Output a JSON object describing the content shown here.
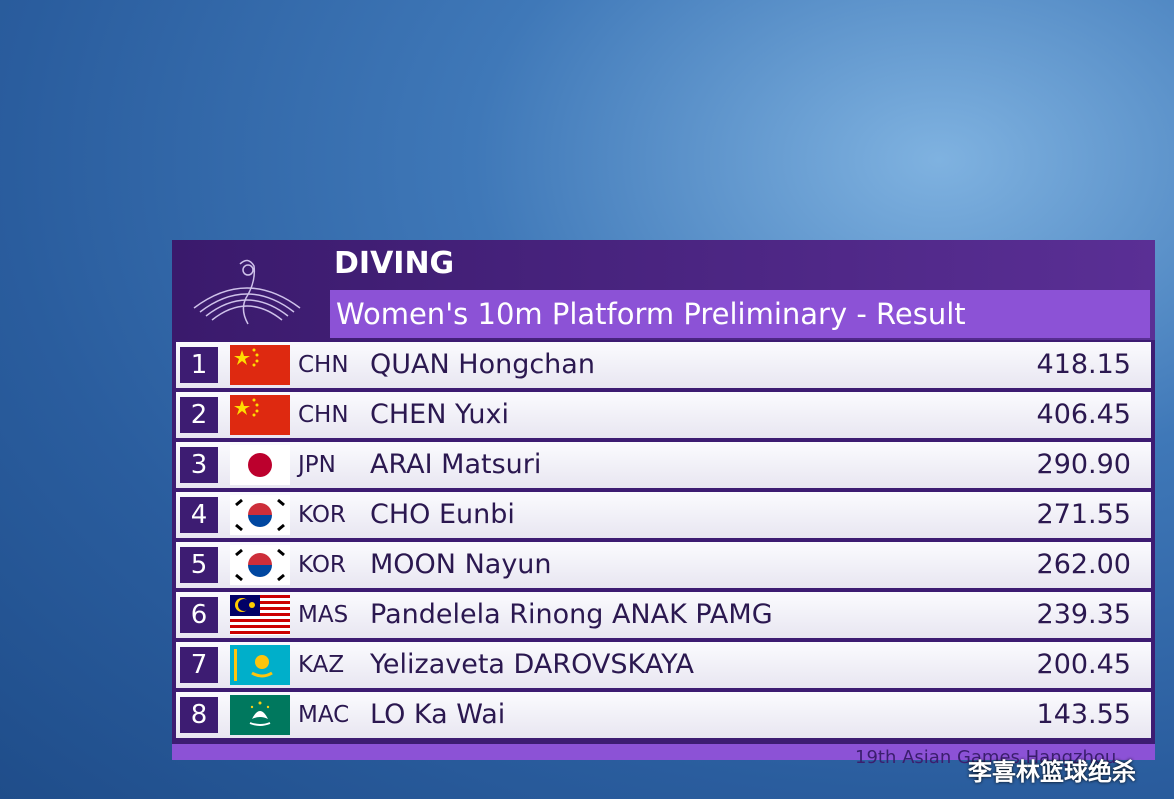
{
  "header": {
    "sport": "DIVING",
    "event": "Women's 10m Platform Preliminary - Result"
  },
  "table": {
    "rows": [
      [
        "1",
        "CHN",
        "QUAN Hongchan",
        "418.15"
      ],
      [
        "2",
        "CHN",
        "CHEN Yuxi",
        "406.45"
      ],
      [
        "3",
        "JPN",
        "ARAI Matsuri",
        "290.90"
      ],
      [
        "4",
        "KOR",
        "CHO Eunbi",
        "271.55"
      ],
      [
        "5",
        "KOR",
        "MOON Nayun",
        "262.00"
      ],
      [
        "6",
        "MAS",
        "Pandelela Rinong ANAK PAMG",
        "239.35"
      ],
      [
        "7",
        "KAZ",
        "Yelizaveta DAROVSKAYA",
        "200.45"
      ],
      [
        "8",
        "MAC",
        "LO Ka Wai",
        "143.55"
      ]
    ]
  },
  "footer": {
    "text": "19th Asian Games Hangzhou"
  },
  "watermark": "李喜林篮球绝杀"
}
